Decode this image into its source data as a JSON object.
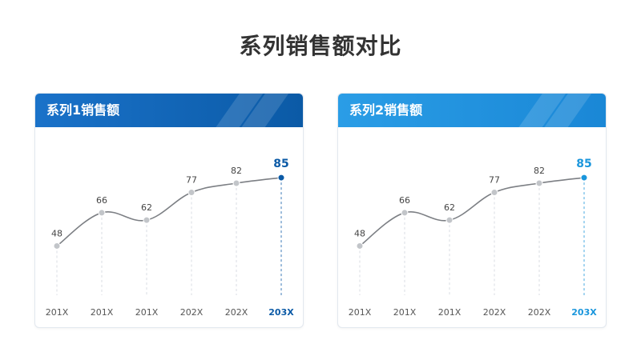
{
  "title": "系列销售额对比",
  "chart_data": [
    {
      "type": "line",
      "title": "系列1销售额",
      "accent": "#0b5aa6",
      "categories": [
        "201X",
        "201X",
        "201X",
        "202X",
        "202X",
        "203X"
      ],
      "values": [
        48,
        66,
        62,
        77,
        82,
        85
      ],
      "highlight_index": 5,
      "ylim": [
        30,
        95
      ]
    },
    {
      "type": "line",
      "title": "系列2销售额",
      "accent": "#1a96dc",
      "categories": [
        "201X",
        "201X",
        "201X",
        "202X",
        "202X",
        "203X"
      ],
      "values": [
        48,
        66,
        62,
        77,
        82,
        85
      ],
      "highlight_index": 5,
      "ylim": [
        30,
        95
      ]
    }
  ]
}
